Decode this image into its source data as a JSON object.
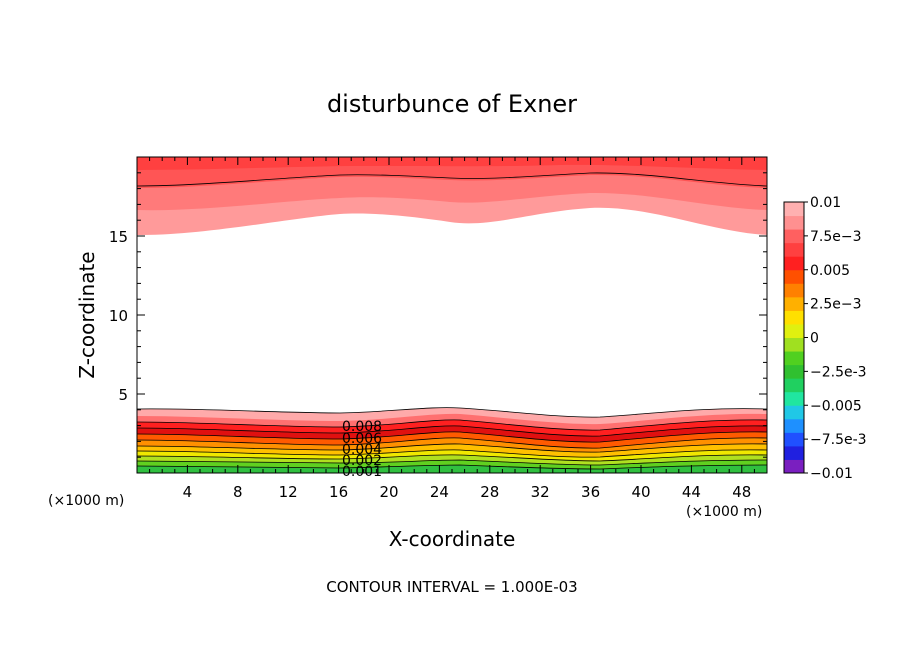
{
  "chart_data": {
    "type": "heatmap",
    "title": "disturbunce of Exner",
    "xlabel": "X-coordinate",
    "ylabel": "Z-coordinate",
    "x_unit": "(×1000 m)",
    "y_unit": "(×1000 m)",
    "xlim": [
      0,
      50
    ],
    "ylim": [
      0,
      20
    ],
    "x_ticks": [
      4,
      8,
      12,
      16,
      20,
      24,
      28,
      32,
      36,
      40,
      44,
      48
    ],
    "y_ticks": [
      5,
      10,
      15
    ],
    "footer": "CONTOUR INTERVAL = 1.000E-03",
    "colorbar": {
      "labels": [
        "0.01",
        "7.5e-3",
        "0.005",
        "2.5e-3",
        "0",
        "-2.5e-3",
        "-0.005",
        "-7.5e-3",
        "-0.01"
      ],
      "range": [
        -0.01,
        0.01
      ],
      "colors": [
        "#7a1fc0",
        "#2020e0",
        "#2050ff",
        "#1e90ff",
        "#20c8e6",
        "#20e6a0",
        "#20d060",
        "#30c030",
        "#50d020",
        "#a0e020",
        "#e0f010",
        "#ffe000",
        "#ffb000",
        "#ff8000",
        "#ff5000",
        "#ff2020",
        "#ff4040",
        "#ff6060",
        "#ff9090",
        "#ffb0b0"
      ]
    },
    "contour_labels": [
      "0.008",
      "0.006",
      "0.004",
      "0.002",
      "0.001"
    ],
    "bottom_layer": {
      "top_boundary_km": [
        3.9,
        3.7,
        4.0,
        3.6,
        3.9
      ],
      "at_x_km": [
        0,
        15,
        25,
        36,
        50
      ]
    },
    "top_layer": {
      "bottom_boundary_km": [
        15.1,
        16.2,
        15.7,
        16.6,
        15.1
      ],
      "at_x_km": [
        0,
        17,
        26,
        36,
        50
      ]
    }
  }
}
